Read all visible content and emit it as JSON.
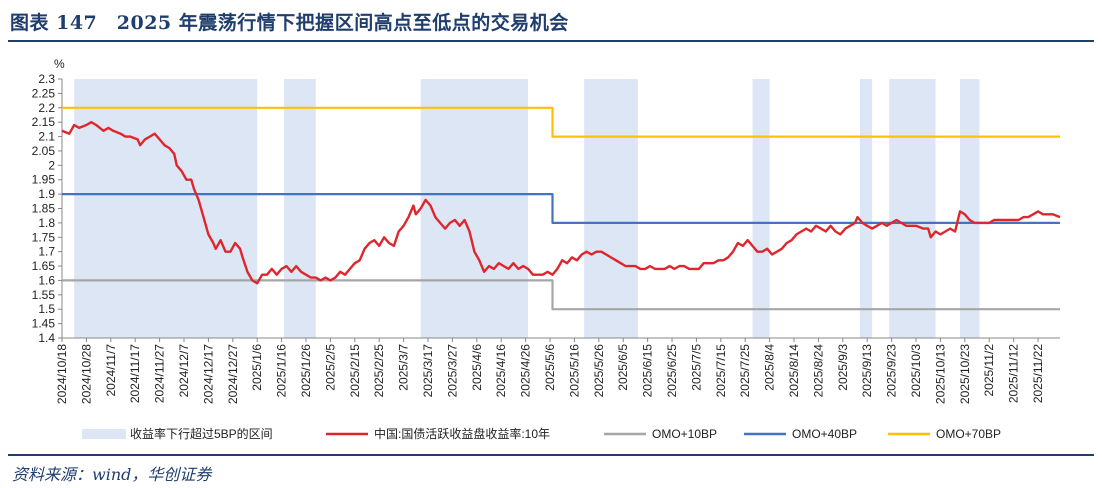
{
  "figure": {
    "title": "图表 147　2025 年震荡行情下把握区间高点至低点的交易机会",
    "source": "资料来源：wind，华创证券"
  },
  "chart_data": {
    "type": "line",
    "ylabel": "%",
    "ylim": [
      1.4,
      2.3
    ],
    "y_ticks": [
      "1.4",
      "1.45",
      "1.5",
      "1.55",
      "1.6",
      "1.65",
      "1.7",
      "1.75",
      "1.8",
      "1.85",
      "1.9",
      "1.95",
      "2",
      "2.05",
      "2.1",
      "2.15",
      "2.2",
      "2.25",
      "2.3"
    ],
    "x_range": [
      "2024-10-18",
      "2025-12-01"
    ],
    "x_ticks": [
      "2024/10/18",
      "2024/10/28",
      "2024/11/7",
      "2024/11/17",
      "2024/11/27",
      "2024/12/7",
      "2024/12/17",
      "2024/12/27",
      "2025/1/6",
      "2025/1/16",
      "2025/1/26",
      "2025/2/5",
      "2025/2/15",
      "2025/2/25",
      "2025/3/7",
      "2025/3/17",
      "2025/3/27",
      "2025/4/6",
      "2025/4/16",
      "2025/4/26",
      "2025/5/6",
      "2025/5/16",
      "2025/5/26",
      "2025/6/5",
      "2025/6/15",
      "2025/6/25",
      "2025/7/5",
      "2025/7/15",
      "2025/7/25",
      "2025/8/4",
      "2025/8/14",
      "2025/8/24",
      "2025/9/3",
      "2025/9/13",
      "2025/9/23",
      "2025/10/3",
      "2025/10/13",
      "2025/10/23",
      "2025/11/2",
      "2025/11/12",
      "2025/11/22"
    ],
    "shaded_ranges": [
      [
        "2024-10-23",
        "2025-01-06"
      ],
      [
        "2025-01-17",
        "2025-01-30"
      ],
      [
        "2025-03-14",
        "2025-04-27"
      ],
      [
        "2025-05-20",
        "2025-06-11"
      ],
      [
        "2025-07-28",
        "2025-08-04"
      ],
      [
        "2025-09-10",
        "2025-09-15"
      ],
      [
        "2025-09-22",
        "2025-10-11"
      ],
      [
        "2025-10-21",
        "2025-10-29"
      ]
    ],
    "colors": {
      "shade": "#dce6f4",
      "yield": "#e0262d",
      "omo10": "#a6a6a6",
      "omo40": "#4472c4",
      "omo70": "#ffc000"
    },
    "series": [
      {
        "name": "中国:国债活跃收益盘收益率:10年",
        "key": "yield",
        "points": [
          [
            "2024-10-18",
            2.12
          ],
          [
            "2024-10-21",
            2.11
          ],
          [
            "2024-10-23",
            2.14
          ],
          [
            "2024-10-25",
            2.13
          ],
          [
            "2024-10-28",
            2.14
          ],
          [
            "2024-10-30",
            2.15
          ],
          [
            "2024-11-01",
            2.14
          ],
          [
            "2024-11-04",
            2.12
          ],
          [
            "2024-11-06",
            2.13
          ],
          [
            "2024-11-08",
            2.12
          ],
          [
            "2024-11-11",
            2.11
          ],
          [
            "2024-11-13",
            2.1
          ],
          [
            "2024-11-15",
            2.1
          ],
          [
            "2024-11-18",
            2.09
          ],
          [
            "2024-11-19",
            2.07
          ],
          [
            "2024-11-21",
            2.09
          ],
          [
            "2024-11-23",
            2.1
          ],
          [
            "2024-11-25",
            2.11
          ],
          [
            "2024-11-27",
            2.09
          ],
          [
            "2024-11-29",
            2.07
          ],
          [
            "2024-12-01",
            2.06
          ],
          [
            "2024-12-03",
            2.04
          ],
          [
            "2024-12-04",
            2.0
          ],
          [
            "2024-12-06",
            1.98
          ],
          [
            "2024-12-08",
            1.95
          ],
          [
            "2024-12-10",
            1.95
          ],
          [
            "2024-12-11",
            1.92
          ],
          [
            "2024-12-13",
            1.88
          ],
          [
            "2024-12-15",
            1.82
          ],
          [
            "2024-12-17",
            1.76
          ],
          [
            "2024-12-19",
            1.73
          ],
          [
            "2024-12-20",
            1.71
          ],
          [
            "2024-12-22",
            1.74
          ],
          [
            "2024-12-24",
            1.7
          ],
          [
            "2024-12-26",
            1.7
          ],
          [
            "2024-12-28",
            1.73
          ],
          [
            "2024-12-30",
            1.71
          ],
          [
            "2024-12-31",
            1.68
          ],
          [
            "2025-01-02",
            1.63
          ],
          [
            "2025-01-04",
            1.6
          ],
          [
            "2025-01-06",
            1.59
          ],
          [
            "2025-01-08",
            1.62
          ],
          [
            "2025-01-10",
            1.62
          ],
          [
            "2025-01-12",
            1.64
          ],
          [
            "2025-01-14",
            1.62
          ],
          [
            "2025-01-16",
            1.64
          ],
          [
            "2025-01-18",
            1.65
          ],
          [
            "2025-01-20",
            1.63
          ],
          [
            "2025-01-22",
            1.65
          ],
          [
            "2025-01-24",
            1.63
          ],
          [
            "2025-01-26",
            1.62
          ],
          [
            "2025-01-28",
            1.61
          ],
          [
            "2025-01-30",
            1.61
          ],
          [
            "2025-02-01",
            1.6
          ],
          [
            "2025-02-03",
            1.61
          ],
          [
            "2025-02-05",
            1.6
          ],
          [
            "2025-02-07",
            1.61
          ],
          [
            "2025-02-09",
            1.63
          ],
          [
            "2025-02-11",
            1.62
          ],
          [
            "2025-02-13",
            1.64
          ],
          [
            "2025-02-15",
            1.66
          ],
          [
            "2025-02-17",
            1.67
          ],
          [
            "2025-02-19",
            1.71
          ],
          [
            "2025-02-21",
            1.73
          ],
          [
            "2025-02-23",
            1.74
          ],
          [
            "2025-02-25",
            1.72
          ],
          [
            "2025-02-27",
            1.75
          ],
          [
            "2025-03-01",
            1.73
          ],
          [
            "2025-03-03",
            1.72
          ],
          [
            "2025-03-05",
            1.77
          ],
          [
            "2025-03-07",
            1.79
          ],
          [
            "2025-03-09",
            1.82
          ],
          [
            "2025-03-11",
            1.86
          ],
          [
            "2025-03-12",
            1.83
          ],
          [
            "2025-03-14",
            1.85
          ],
          [
            "2025-03-16",
            1.88
          ],
          [
            "2025-03-18",
            1.86
          ],
          [
            "2025-03-20",
            1.82
          ],
          [
            "2025-03-22",
            1.8
          ],
          [
            "2025-03-24",
            1.78
          ],
          [
            "2025-03-26",
            1.8
          ],
          [
            "2025-03-28",
            1.81
          ],
          [
            "2025-03-30",
            1.79
          ],
          [
            "2025-04-01",
            1.81
          ],
          [
            "2025-04-03",
            1.77
          ],
          [
            "2025-04-05",
            1.7
          ],
          [
            "2025-04-07",
            1.67
          ],
          [
            "2025-04-09",
            1.63
          ],
          [
            "2025-04-11",
            1.65
          ],
          [
            "2025-04-13",
            1.64
          ],
          [
            "2025-04-15",
            1.66
          ],
          [
            "2025-04-17",
            1.65
          ],
          [
            "2025-04-19",
            1.64
          ],
          [
            "2025-04-21",
            1.66
          ],
          [
            "2025-04-23",
            1.64
          ],
          [
            "2025-04-25",
            1.65
          ],
          [
            "2025-04-27",
            1.64
          ],
          [
            "2025-04-29",
            1.62
          ],
          [
            "2025-05-01",
            1.62
          ],
          [
            "2025-05-03",
            1.62
          ],
          [
            "2025-05-05",
            1.63
          ],
          [
            "2025-05-07",
            1.62
          ],
          [
            "2025-05-09",
            1.64
          ],
          [
            "2025-05-11",
            1.67
          ],
          [
            "2025-05-13",
            1.66
          ],
          [
            "2025-05-15",
            1.68
          ],
          [
            "2025-05-17",
            1.67
          ],
          [
            "2025-05-19",
            1.69
          ],
          [
            "2025-05-21",
            1.7
          ],
          [
            "2025-05-23",
            1.69
          ],
          [
            "2025-05-25",
            1.7
          ],
          [
            "2025-05-27",
            1.7
          ],
          [
            "2025-05-29",
            1.69
          ],
          [
            "2025-05-31",
            1.68
          ],
          [
            "2025-06-02",
            1.67
          ],
          [
            "2025-06-04",
            1.66
          ],
          [
            "2025-06-06",
            1.65
          ],
          [
            "2025-06-08",
            1.65
          ],
          [
            "2025-06-10",
            1.65
          ],
          [
            "2025-06-12",
            1.64
          ],
          [
            "2025-06-14",
            1.64
          ],
          [
            "2025-06-16",
            1.65
          ],
          [
            "2025-06-18",
            1.64
          ],
          [
            "2025-06-20",
            1.64
          ],
          [
            "2025-06-22",
            1.64
          ],
          [
            "2025-06-24",
            1.65
          ],
          [
            "2025-06-26",
            1.64
          ],
          [
            "2025-06-28",
            1.65
          ],
          [
            "2025-06-30",
            1.65
          ],
          [
            "2025-07-02",
            1.64
          ],
          [
            "2025-07-04",
            1.64
          ],
          [
            "2025-07-06",
            1.64
          ],
          [
            "2025-07-08",
            1.66
          ],
          [
            "2025-07-10",
            1.66
          ],
          [
            "2025-07-12",
            1.66
          ],
          [
            "2025-07-14",
            1.67
          ],
          [
            "2025-07-16",
            1.67
          ],
          [
            "2025-07-18",
            1.68
          ],
          [
            "2025-07-20",
            1.7
          ],
          [
            "2025-07-22",
            1.73
          ],
          [
            "2025-07-24",
            1.72
          ],
          [
            "2025-07-26",
            1.74
          ],
          [
            "2025-07-28",
            1.72
          ],
          [
            "2025-07-30",
            1.7
          ],
          [
            "2025-08-01",
            1.7
          ],
          [
            "2025-08-03",
            1.71
          ],
          [
            "2025-08-05",
            1.69
          ],
          [
            "2025-08-07",
            1.7
          ],
          [
            "2025-08-09",
            1.71
          ],
          [
            "2025-08-11",
            1.73
          ],
          [
            "2025-08-13",
            1.74
          ],
          [
            "2025-08-15",
            1.76
          ],
          [
            "2025-08-17",
            1.77
          ],
          [
            "2025-08-19",
            1.78
          ],
          [
            "2025-08-21",
            1.77
          ],
          [
            "2025-08-23",
            1.79
          ],
          [
            "2025-08-25",
            1.78
          ],
          [
            "2025-08-27",
            1.77
          ],
          [
            "2025-08-29",
            1.79
          ],
          [
            "2025-08-31",
            1.77
          ],
          [
            "2025-09-02",
            1.76
          ],
          [
            "2025-09-04",
            1.78
          ],
          [
            "2025-09-06",
            1.79
          ],
          [
            "2025-09-08",
            1.8
          ],
          [
            "2025-09-09",
            1.82
          ],
          [
            "2025-09-11",
            1.8
          ],
          [
            "2025-09-13",
            1.79
          ],
          [
            "2025-09-15",
            1.78
          ],
          [
            "2025-09-17",
            1.79
          ],
          [
            "2025-09-19",
            1.8
          ],
          [
            "2025-09-21",
            1.79
          ],
          [
            "2025-09-23",
            1.8
          ],
          [
            "2025-09-25",
            1.81
          ],
          [
            "2025-09-27",
            1.8
          ],
          [
            "2025-09-29",
            1.79
          ],
          [
            "2025-10-01",
            1.79
          ],
          [
            "2025-10-03",
            1.79
          ],
          [
            "2025-10-06",
            1.78
          ],
          [
            "2025-10-08",
            1.78
          ],
          [
            "2025-10-09",
            1.75
          ],
          [
            "2025-10-11",
            1.77
          ],
          [
            "2025-10-13",
            1.76
          ],
          [
            "2025-10-15",
            1.77
          ],
          [
            "2025-10-17",
            1.78
          ],
          [
            "2025-10-19",
            1.77
          ],
          [
            "2025-10-21",
            1.84
          ],
          [
            "2025-10-23",
            1.83
          ],
          [
            "2025-10-25",
            1.81
          ],
          [
            "2025-10-27",
            1.8
          ],
          [
            "2025-10-29",
            1.8
          ],
          [
            "2025-10-31",
            1.8
          ],
          [
            "2025-11-02",
            1.8
          ],
          [
            "2025-11-04",
            1.81
          ],
          [
            "2025-11-06",
            1.81
          ],
          [
            "2025-11-08",
            1.81
          ],
          [
            "2025-11-10",
            1.81
          ],
          [
            "2025-11-12",
            1.81
          ],
          [
            "2025-11-14",
            1.81
          ],
          [
            "2025-11-16",
            1.82
          ],
          [
            "2025-11-18",
            1.82
          ],
          [
            "2025-11-20",
            1.83
          ],
          [
            "2025-11-22",
            1.84
          ],
          [
            "2025-11-24",
            1.83
          ],
          [
            "2025-11-26",
            1.83
          ],
          [
            "2025-11-28",
            1.83
          ],
          [
            "2025-12-01",
            1.82
          ]
        ]
      },
      {
        "name": "OMO+10BP",
        "key": "omo10",
        "points": [
          [
            "2024-10-18",
            1.6
          ],
          [
            "2025-05-07",
            1.6
          ],
          [
            "2025-05-07",
            1.5
          ],
          [
            "2025-12-01",
            1.5
          ]
        ]
      },
      {
        "name": "OMO+40BP",
        "key": "omo40",
        "points": [
          [
            "2024-10-18",
            1.9
          ],
          [
            "2025-05-07",
            1.9
          ],
          [
            "2025-05-07",
            1.8
          ],
          [
            "2025-12-01",
            1.8
          ]
        ]
      },
      {
        "name": "OMO+70BP",
        "key": "omo70",
        "points": [
          [
            "2024-10-18",
            2.2
          ],
          [
            "2025-05-07",
            2.2
          ],
          [
            "2025-05-07",
            2.1
          ],
          [
            "2025-12-01",
            2.1
          ]
        ]
      }
    ],
    "legend": {
      "placement": "bottom",
      "shade_label": "收益率下行超过5BP的区间",
      "items": [
        "中国:国债活跃收益盘收益率:10年",
        "OMO+10BP",
        "OMO+40BP",
        "OMO+70BP"
      ]
    }
  }
}
